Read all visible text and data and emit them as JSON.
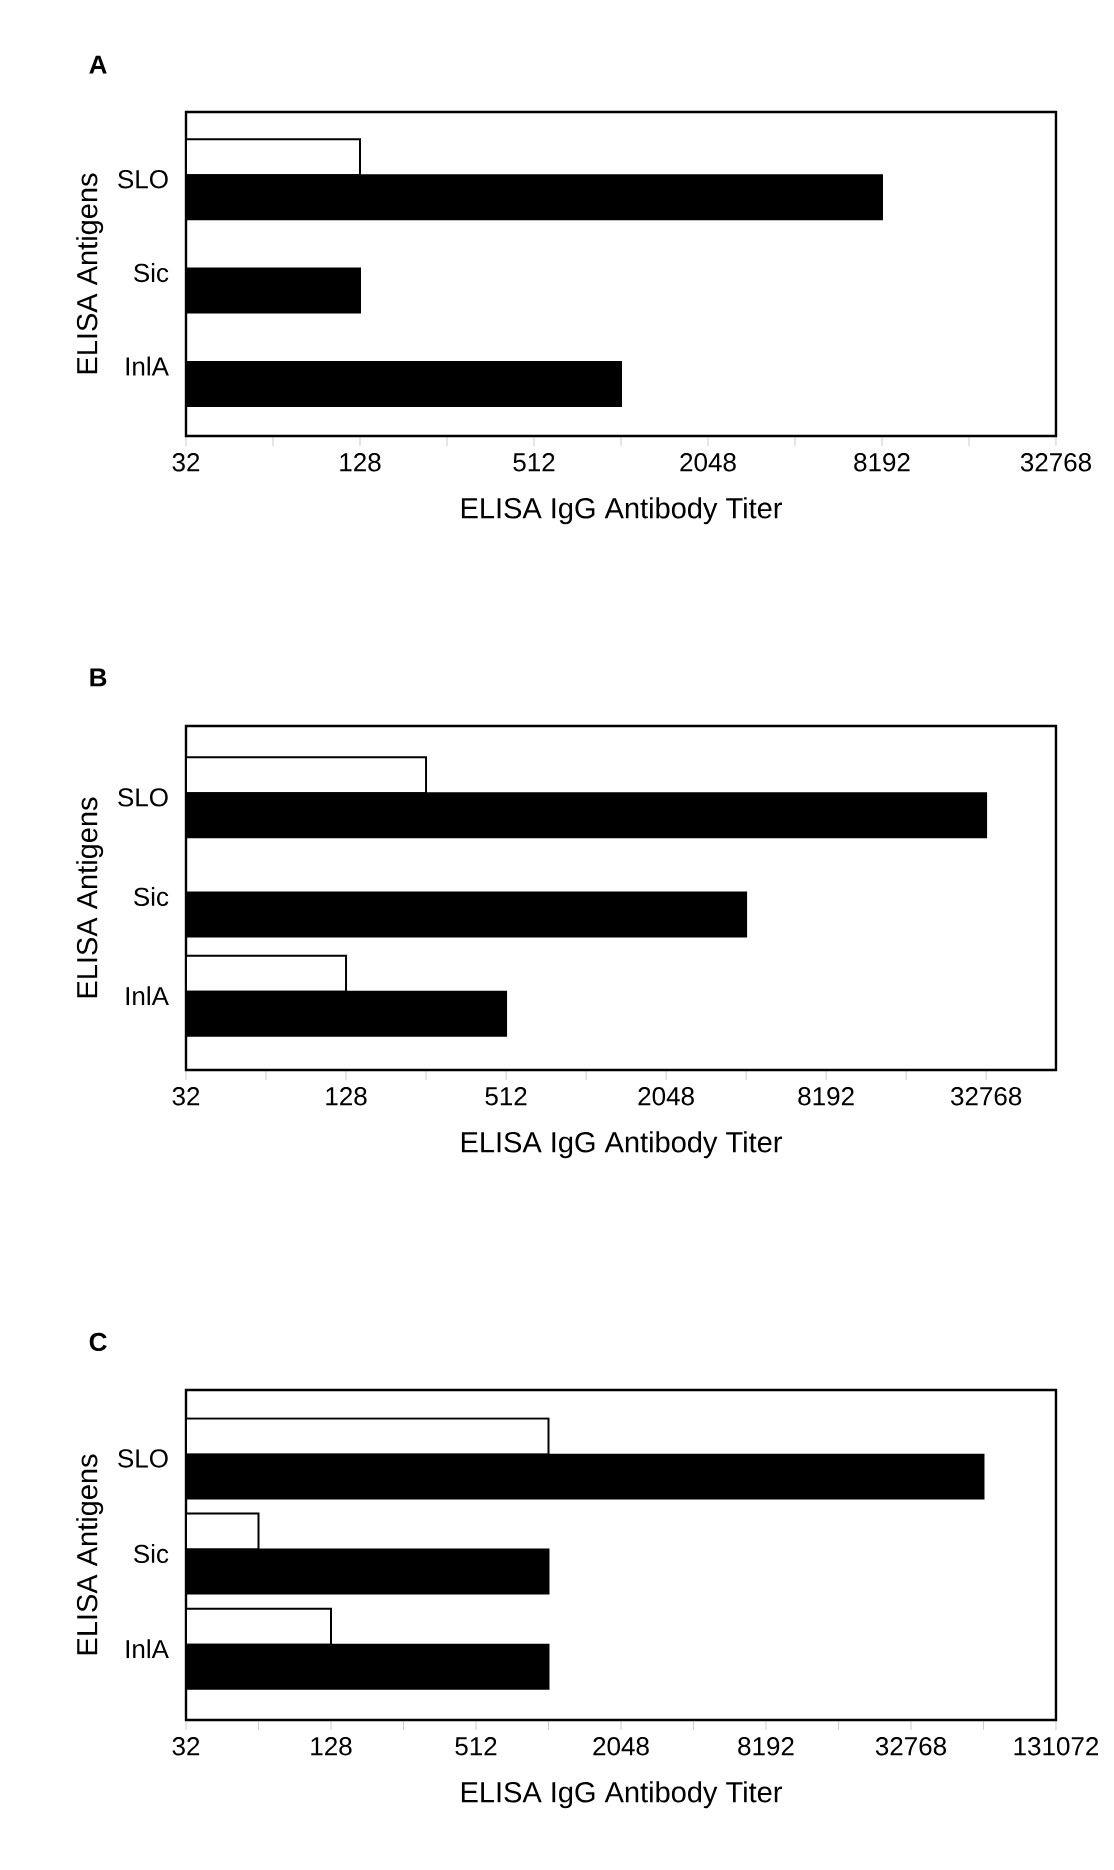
{
  "chart_data": [
    {
      "type": "bar",
      "orientation": "horizontal",
      "title": "A",
      "xlabel": "ELISA IgG Antibody Titer",
      "ylabel": "ELISA Antigens",
      "log": "x",
      "categories": [
        "SLO",
        "Sic",
        "InlA"
      ],
      "series": [
        {
          "color": "#ffffff",
          "values": [
            128,
            null,
            null
          ]
        },
        {
          "color": "#000000",
          "values": [
            8192,
            128,
            1024
          ]
        }
      ],
      "xlim": [
        32,
        32768
      ],
      "xticks": [
        32,
        {
          "value": 64,
          "label": null
        },
        128,
        {
          "value": 256,
          "label": null
        },
        512,
        {
          "value": 1024,
          "label": null
        },
        2048,
        {
          "value": 4096,
          "label": null
        },
        8192,
        {
          "value": 16384,
          "label": null
        },
        32768
      ]
    },
    {
      "type": "bar",
      "orientation": "horizontal",
      "title": "B",
      "xlabel": "ELISA IgG Antibody Titer",
      "ylabel": "ELISA Antigens",
      "log": "x",
      "categories": [
        "SLO",
        "Sic",
        "InlA"
      ],
      "series": [
        {
          "color": "#ffffff",
          "values": [
            256,
            null,
            128
          ]
        },
        {
          "color": "#000000",
          "values": [
            32768,
            4096,
            512
          ]
        }
      ],
      "xlim": [
        32,
        60000
      ],
      "xticks": [
        32,
        {
          "value": 64,
          "label": null
        },
        128,
        {
          "value": 256,
          "label": null
        },
        512,
        {
          "value": 1024,
          "label": null
        },
        2048,
        {
          "value": 4096,
          "label": null
        },
        8192,
        {
          "value": 16384,
          "label": null
        },
        32768
      ]
    },
    {
      "type": "bar",
      "orientation": "horizontal",
      "title": "C",
      "xlabel": "ELISA IgG Antibody Titer",
      "ylabel": "ELISA Antigens",
      "log": "x",
      "categories": [
        "SLO",
        "Sic",
        "InlA"
      ],
      "series": [
        {
          "color": "#ffffff",
          "values": [
            1024,
            64,
            128
          ]
        },
        {
          "color": "#000000",
          "values": [
            65536,
            1024,
            1024
          ]
        }
      ],
      "xlim": [
        32,
        131072
      ],
      "xticks": [
        32,
        {
          "value": 64,
          "label": null
        },
        128,
        {
          "value": 256,
          "label": null
        },
        512,
        {
          "value": 1024,
          "label": null
        },
        2048,
        {
          "value": 4096,
          "label": null
        },
        8192,
        {
          "value": 16384,
          "label": null
        },
        32768,
        {
          "value": 65536,
          "label": null
        },
        131072
      ]
    }
  ]
}
